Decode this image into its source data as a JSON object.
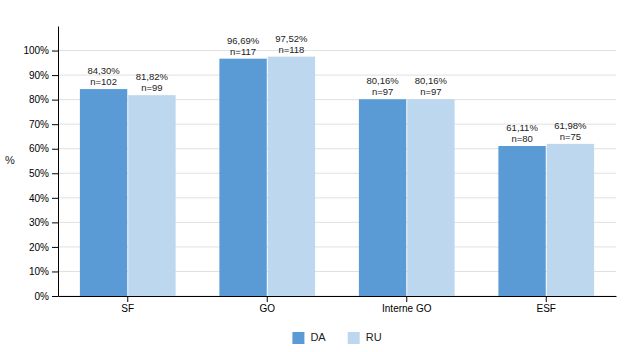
{
  "chart_data": {
    "type": "bar",
    "ylabel": "%",
    "categories": [
      "SF",
      "GO",
      "Interne GO",
      "ESF"
    ],
    "series": [
      {
        "name": "DA",
        "color": "#5B9BD5",
        "values": [
          84.3,
          96.69,
          80.16,
          61.11
        ],
        "value_labels": [
          "84,30%\nn=102",
          "96,69%\nn=117",
          "80,16%\nn=97",
          "61,11%\nn=80"
        ]
      },
      {
        "name": "RU",
        "color": "#BDD7EE",
        "values": [
          81.82,
          97.52,
          80.16,
          61.98
        ],
        "value_labels": [
          "81,82%\nn=99",
          "97,52%\nn=118",
          "80,16%\nn=97",
          "61,98%\nn=75"
        ]
      }
    ],
    "ylim": [
      0,
      110
    ],
    "yticks": [
      {
        "value": 0,
        "label": "0%"
      },
      {
        "value": 10,
        "label": "10%"
      },
      {
        "value": 20,
        "label": "20%"
      },
      {
        "value": 30,
        "label": "30%"
      },
      {
        "value": 40,
        "label": "40%"
      },
      {
        "value": 50,
        "label": "50%"
      },
      {
        "value": 60,
        "label": "60%"
      },
      {
        "value": 70,
        "label": "70%"
      },
      {
        "value": 80,
        "label": "80%"
      },
      {
        "value": 90,
        "label": "90%"
      },
      {
        "value": 100,
        "label": "100%"
      }
    ],
    "grid": true,
    "data_labels": true,
    "legend": "bottom"
  }
}
